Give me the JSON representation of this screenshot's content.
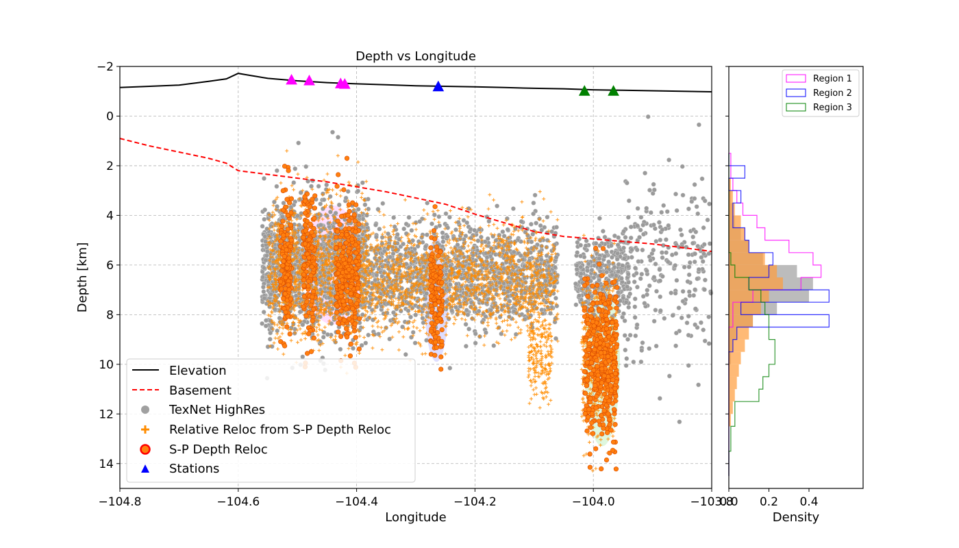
{
  "chart_data": [
    {
      "type": "scatter",
      "title": "Depth vs Longitude",
      "xlabel": "Longitude",
      "ylabel": "Depth [km]",
      "xlim": [
        -104.8,
        -103.8
      ],
      "ylim": [
        15,
        -2
      ],
      "y_inverted": true,
      "grid": true,
      "xticks": [
        -104.8,
        -104.6,
        -104.4,
        -104.2,
        -104.0,
        -103.8
      ],
      "xtick_labels": [
        "−104.8",
        "−104.6",
        "−104.4",
        "−104.2",
        "−104.0",
        "−103.8"
      ],
      "yticks": [
        -2,
        0,
        2,
        4,
        6,
        8,
        10,
        12,
        14
      ],
      "ytick_labels": [
        "−2",
        "0",
        "2",
        "4",
        "6",
        "8",
        "10",
        "12",
        "14"
      ],
      "legend_position": "lower-left",
      "legend": [
        {
          "label": "Elevation",
          "marker": "line",
          "color": "#000000"
        },
        {
          "label": "Basement",
          "marker": "dashed-line",
          "color": "#ff0000"
        },
        {
          "label": "TexNet HighRes",
          "marker": "circle",
          "color": "#a0a0a0"
        },
        {
          "label": "Relative Reloc from S-P Depth Reloc",
          "marker": "plus",
          "color": "#ff8c00"
        },
        {
          "label": "S-P Depth Reloc",
          "marker": "circle-outlined",
          "color": "#ff7f0e"
        },
        {
          "label": "Stations",
          "marker": "triangle",
          "color": "#0000ff"
        }
      ],
      "elevation_line": {
        "name": "Elevation",
        "color": "#000000",
        "x": [
          -104.8,
          -104.7,
          -104.65,
          -104.62,
          -104.6,
          -104.59,
          -104.57,
          -104.55,
          -104.5,
          -104.45,
          -104.4,
          -104.35,
          -104.3,
          -104.25,
          -104.2,
          -104.15,
          -104.1,
          -104.05,
          -104.0,
          -103.95,
          -103.9,
          -103.85,
          -103.8
        ],
        "y": [
          -1.15,
          -1.25,
          -1.4,
          -1.5,
          -1.72,
          -1.68,
          -1.6,
          -1.52,
          -1.42,
          -1.35,
          -1.3,
          -1.26,
          -1.22,
          -1.2,
          -1.18,
          -1.15,
          -1.12,
          -1.1,
          -1.06,
          -1.04,
          -1.02,
          -1.0,
          -0.98
        ]
      },
      "basement_line": {
        "name": "Basement",
        "color": "#ff0000",
        "x": [
          -104.8,
          -104.75,
          -104.7,
          -104.65,
          -104.62,
          -104.6,
          -104.55,
          -104.5,
          -104.45,
          -104.4,
          -104.35,
          -104.3,
          -104.25,
          -104.2,
          -104.15,
          -104.1,
          -104.05,
          -104.0,
          -103.95,
          -103.9,
          -103.85,
          -103.8
        ],
        "y": [
          0.9,
          1.2,
          1.45,
          1.7,
          1.9,
          2.2,
          2.35,
          2.5,
          2.65,
          2.85,
          3.05,
          3.3,
          3.55,
          3.95,
          4.3,
          4.65,
          4.85,
          4.95,
          5.05,
          5.15,
          5.3,
          5.45
        ]
      },
      "stations": [
        {
          "lon": -104.51,
          "elev": -1.45,
          "color": "#ff00ff",
          "region": "Region 1"
        },
        {
          "lon": -104.48,
          "elev": -1.42,
          "color": "#ff00ff",
          "region": "Region 1"
        },
        {
          "lon": -104.427,
          "elev": -1.3,
          "color": "#ff00ff",
          "region": "Region 1"
        },
        {
          "lon": -104.42,
          "elev": -1.28,
          "color": "#ff00ff",
          "region": "Region 1"
        },
        {
          "lon": -104.262,
          "elev": -1.18,
          "color": "#0000ff",
          "region": "Region 2"
        },
        {
          "lon": -104.015,
          "elev": -1.0,
          "color": "#008000",
          "region": "Region 3"
        },
        {
          "lon": -103.966,
          "elev": -1.0,
          "color": "#008000",
          "region": "Region 3"
        }
      ],
      "region_ellipses": [
        {
          "region": "Region 1",
          "lon": -104.44,
          "depth": 6.0,
          "half_width_deg": 0.05,
          "half_height_km": 2.4,
          "color": "#ff00ff"
        },
        {
          "region": "Region 2",
          "lon": -104.265,
          "depth": 7.4,
          "half_width_deg": 0.02,
          "half_height_km": 2.5,
          "color": "#0000ff"
        },
        {
          "region": "Region 3",
          "lon": -103.985,
          "depth": 10.0,
          "half_width_deg": 0.03,
          "half_height_km": 3.3,
          "color": "#00c000"
        }
      ],
      "event_clusters": [
        {
          "series": "TexNet HighRes",
          "lon_range": [
            -104.56,
            -104.38
          ],
          "depth_mean": 6.1,
          "depth_sd": 1.3,
          "count": 1400
        },
        {
          "series": "TexNet HighRes",
          "lon_range": [
            -104.38,
            -104.06
          ],
          "depth_mean": 6.4,
          "depth_sd": 1.0,
          "count": 1300
        },
        {
          "series": "TexNet HighRes",
          "lon_range": [
            -104.03,
            -103.94
          ],
          "depth_mean": 6.5,
          "depth_sd": 0.9,
          "count": 350
        },
        {
          "series": "TexNet HighRes",
          "lon_range": [
            -103.95,
            -103.8
          ],
          "depth_mean": 5.8,
          "depth_sd": 1.8,
          "count": 250
        },
        {
          "series": "Relative Reloc from S-P Depth Reloc",
          "lon_range": [
            -104.55,
            -104.38
          ],
          "depth_mean": 6.2,
          "depth_sd": 1.4,
          "count": 1200
        },
        {
          "series": "Relative Reloc from S-P Depth Reloc",
          "lon_range": [
            -104.38,
            -104.06
          ],
          "depth_mean": 6.6,
          "depth_sd": 1.1,
          "count": 1400
        },
        {
          "series": "Relative Reloc from S-P Depth Reloc",
          "lon_range": [
            -104.11,
            -104.07
          ],
          "depth_mean": 9.6,
          "depth_sd": 0.9,
          "count": 200
        },
        {
          "series": "Relative Reloc from S-P Depth Reloc",
          "lon_range": [
            -104.02,
            -103.96
          ],
          "depth_mean": 9.8,
          "depth_sd": 1.6,
          "count": 500
        },
        {
          "series": "S-P Depth Reloc",
          "lon_range": [
            -104.53,
            -104.51
          ],
          "depth_mean": 6.0,
          "depth_sd": 1.4,
          "count": 140
        },
        {
          "series": "S-P Depth Reloc",
          "lon_range": [
            -104.49,
            -104.47
          ],
          "depth_mean": 6.0,
          "depth_sd": 1.5,
          "count": 150
        },
        {
          "series": "S-P Depth Reloc",
          "lon_range": [
            -104.435,
            -104.395
          ],
          "depth_mean": 6.3,
          "depth_sd": 1.3,
          "count": 280
        },
        {
          "series": "S-P Depth Reloc",
          "lon_range": [
            -104.275,
            -104.255
          ],
          "depth_mean": 7.4,
          "depth_sd": 1.3,
          "count": 130
        },
        {
          "series": "S-P Depth Reloc",
          "lon_range": [
            -104.015,
            -103.96
          ],
          "depth_mean": 9.8,
          "depth_sd": 1.6,
          "count": 420
        }
      ]
    },
    {
      "type": "histogram",
      "xlabel": "Density",
      "xlim": [
        0,
        0.67
      ],
      "xticks": [
        0.0,
        0.2,
        0.4
      ],
      "xtick_labels": [
        "0.0",
        "0.2",
        "0.4"
      ],
      "ylim": [
        15,
        -2
      ],
      "shared_y_with": "Depth vs Longitude",
      "legend_position": "top-right",
      "legend": [
        {
          "label": "Region 1",
          "color": "#ff00ff"
        },
        {
          "label": "Region 2",
          "color": "#0000ff"
        },
        {
          "label": "Region 3",
          "color": "#008000"
        }
      ],
      "bin_edges": [
        1.5,
        2.0,
        2.5,
        3.0,
        3.5,
        4.0,
        4.5,
        5.0,
        5.5,
        6.0,
        6.5,
        7.0,
        7.5,
        8.0,
        8.5,
        9.0,
        9.5,
        10.0,
        10.5,
        11.0,
        11.5,
        12.0,
        12.5,
        13.0,
        13.5,
        14.0,
        14.5
      ],
      "series": [
        {
          "name": "TexNet HighRes",
          "style": "filled",
          "color": "#a0a0a0",
          "values": [
            0.0,
            0.0,
            0.0,
            0.01,
            0.02,
            0.03,
            0.06,
            0.1,
            0.17,
            0.34,
            0.42,
            0.4,
            0.24,
            0.12,
            0.04,
            0.02,
            0.01,
            0.0,
            0.0,
            0.0,
            0.0,
            0.0,
            0.0,
            0.0,
            0.0,
            0.0
          ]
        },
        {
          "name": "Relative Reloc from S-P Depth Reloc",
          "style": "filled",
          "color": "#ff9d3c",
          "values": [
            0.0,
            0.0,
            0.01,
            0.02,
            0.03,
            0.06,
            0.08,
            0.1,
            0.18,
            0.24,
            0.27,
            0.2,
            0.16,
            0.12,
            0.1,
            0.08,
            0.06,
            0.05,
            0.04,
            0.03,
            0.02,
            0.01,
            0.0,
            0.0,
            0.0,
            0.0
          ]
        },
        {
          "name": "Region 1",
          "style": "step",
          "color": "#ff00ff",
          "values": [
            0.01,
            0.01,
            0.02,
            0.04,
            0.07,
            0.14,
            0.18,
            0.3,
            0.42,
            0.46,
            0.36,
            0.12,
            0.02,
            0.02,
            0.0,
            0.0,
            0.0,
            0.0,
            0.0,
            0.0,
            0.0,
            0.0,
            0.0,
            0.0,
            0.0,
            0.0
          ]
        },
        {
          "name": "Region 2",
          "style": "step",
          "color": "#0000ff",
          "values": [
            0.0,
            0.08,
            0.0,
            0.06,
            0.02,
            0.02,
            0.08,
            0.1,
            0.22,
            0.2,
            0.1,
            0.5,
            0.06,
            0.5,
            0.04,
            0.02,
            0.0,
            0.0,
            0.0,
            0.0,
            0.0,
            0.0,
            0.0,
            0.0,
            0.0,
            0.0
          ]
        },
        {
          "name": "Region 3",
          "style": "step",
          "color": "#008000",
          "values": [
            0.0,
            0.0,
            0.0,
            0.0,
            0.0,
            0.0,
            0.0,
            0.0,
            0.01,
            0.03,
            0.1,
            0.16,
            0.18,
            0.2,
            0.2,
            0.23,
            0.23,
            0.2,
            0.17,
            0.15,
            0.03,
            0.03,
            0.01,
            0.01,
            0.0,
            0.0
          ]
        }
      ]
    }
  ]
}
